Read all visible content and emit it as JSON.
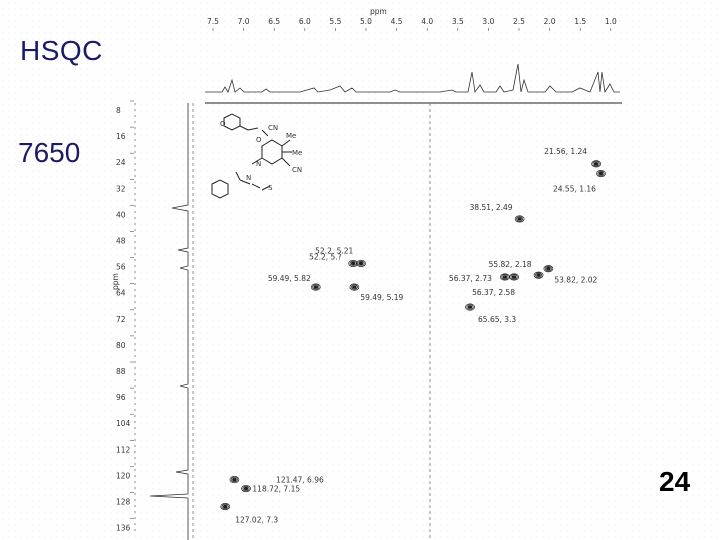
{
  "slide": {
    "title": "HSQC",
    "subtitle": "7650",
    "slide_number": "24"
  },
  "chart_data": {
    "type": "scatter",
    "title": "",
    "xlabel": "ppm",
    "ylabel": "ppm",
    "xlim": [
      7.5,
      1.0
    ],
    "ylim": [
      5,
      133
    ],
    "x_ticks": [
      "7.5",
      "7.0",
      "6.5",
      "6.0",
      "5.5",
      "5.0",
      "4.5",
      "4.0",
      "3.5",
      "3.0",
      "2.5",
      "2.0",
      "1.5",
      "1.0"
    ],
    "y_ticks": [
      "8",
      "16",
      "24",
      "32",
      "40",
      "48",
      "56",
      "64",
      "72",
      "80",
      "88",
      "96",
      "104",
      "112",
      "120",
      "128",
      "136"
    ],
    "grid": false,
    "points": [
      {
        "x": 1.24,
        "y": 21.56,
        "label": "21.56, 1.24"
      },
      {
        "x": 1.16,
        "y": 24.55,
        "label": "24.55, 1.16"
      },
      {
        "x": 2.49,
        "y": 38.51,
        "label": "38.51, 2.49"
      },
      {
        "x": 5.21,
        "y": 52.2,
        "label": "52.2, 5.21"
      },
      {
        "x": 5.08,
        "y": 52.2,
        "label": "52.2, 5.?"
      },
      {
        "x": 5.82,
        "y": 59.49,
        "label": "59.49, 5.82"
      },
      {
        "x": 5.19,
        "y": 59.49,
        "label": "59.49, 5.19"
      },
      {
        "x": 2.18,
        "y": 55.82,
        "label": "55.82, 2.18"
      },
      {
        "x": 2.73,
        "y": 56.37,
        "label": "56.37, 2.73"
      },
      {
        "x": 2.02,
        "y": 53.82,
        "label": "53.82, 2.02"
      },
      {
        "x": 2.58,
        "y": 56.37,
        "label": "56.37, 2.58"
      },
      {
        "x": 3.3,
        "y": 65.65,
        "label": "65.65, 3.3"
      },
      {
        "x": 6.96,
        "y": 121.47,
        "label": "121.47, 6.96"
      },
      {
        "x": 7.15,
        "y": 118.72,
        "label": "118.72, 7.15"
      },
      {
        "x": 7.3,
        "y": 127.02,
        "label": "127.02, 7.3"
      }
    ]
  }
}
